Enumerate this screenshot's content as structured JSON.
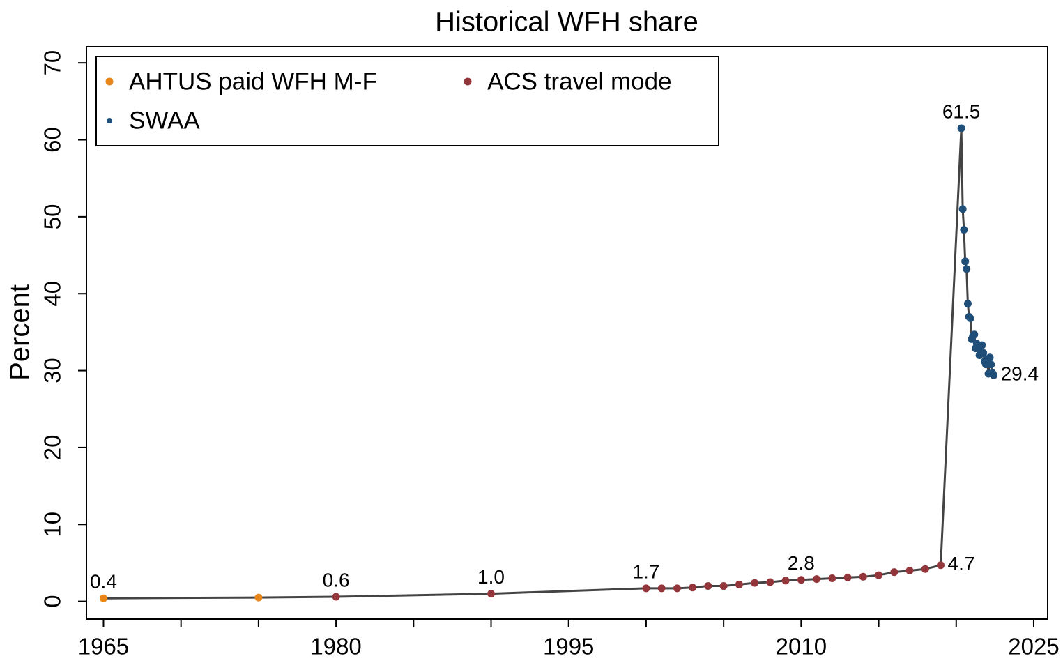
{
  "chart_data": {
    "type": "line",
    "title": "Historical WFH share",
    "ylabel": "Percent",
    "xlim": [
      1963.9,
      2025.9
    ],
    "xticks": [
      1965,
      1980,
      1995,
      2010,
      2025
    ],
    "x_minor_ticks": [
      1970,
      1975,
      1985,
      1990,
      2000,
      2005,
      2015,
      2020
    ],
    "ylim": [
      -2.3,
      72.1
    ],
    "yticks": [
      0,
      10,
      20,
      30,
      40,
      50,
      60,
      70
    ],
    "legend": "top-left",
    "line_color": "#444444",
    "series": [
      {
        "name": "AHTUS paid WFH M-F",
        "color": "#e8861a",
        "x": [
          1965,
          1975
        ],
        "values": [
          0.4,
          0.5
        ],
        "value_labels": [
          "0.4",
          null
        ]
      },
      {
        "name": "ACS travel mode",
        "color": "#93363c",
        "x": [
          1980,
          1990,
          2000,
          2001,
          2002,
          2003,
          2004,
          2005,
          2006,
          2007,
          2008,
          2009,
          2010,
          2011,
          2012,
          2013,
          2014,
          2015,
          2016,
          2017,
          2018,
          2019
        ],
        "values": [
          0.6,
          1.0,
          1.7,
          1.7,
          1.7,
          1.8,
          2.0,
          2.0,
          2.2,
          2.4,
          2.5,
          2.7,
          2.8,
          2.9,
          3.0,
          3.1,
          3.2,
          3.4,
          3.8,
          4.0,
          4.2,
          4.7
        ],
        "value_labels": [
          "0.6",
          "1.0",
          "1.7",
          null,
          null,
          null,
          null,
          null,
          null,
          null,
          null,
          null,
          "2.8",
          null,
          null,
          null,
          null,
          null,
          null,
          null,
          null,
          "4.7"
        ]
      },
      {
        "name": "SWAA",
        "color": "#1f4e79",
        "x": [
          2020.33,
          2020.42,
          2020.5,
          2020.58,
          2020.67,
          2020.75,
          2020.83,
          2020.92,
          2021.0,
          2021.08,
          2021.17,
          2021.25,
          2021.33,
          2021.42,
          2021.5,
          2021.58,
          2021.67,
          2021.75,
          2021.83,
          2021.92,
          2022.0,
          2022.08,
          2022.17,
          2022.25,
          2022.33,
          2022.42
        ],
        "values": [
          61.5,
          51.0,
          48.3,
          44.2,
          43.2,
          38.7,
          37.0,
          36.8,
          34.1,
          34.5,
          34.7,
          32.9,
          33.5,
          33.2,
          32.0,
          32.4,
          33.3,
          32.3,
          31.2,
          30.8,
          31.5,
          29.6,
          31.7,
          30.8,
          29.7,
          29.4
        ],
        "value_labels": [
          "61.5",
          null,
          null,
          null,
          null,
          null,
          null,
          null,
          null,
          null,
          null,
          null,
          null,
          null,
          null,
          null,
          null,
          null,
          null,
          null,
          null,
          null,
          null,
          null,
          null,
          "29.4"
        ]
      }
    ]
  }
}
